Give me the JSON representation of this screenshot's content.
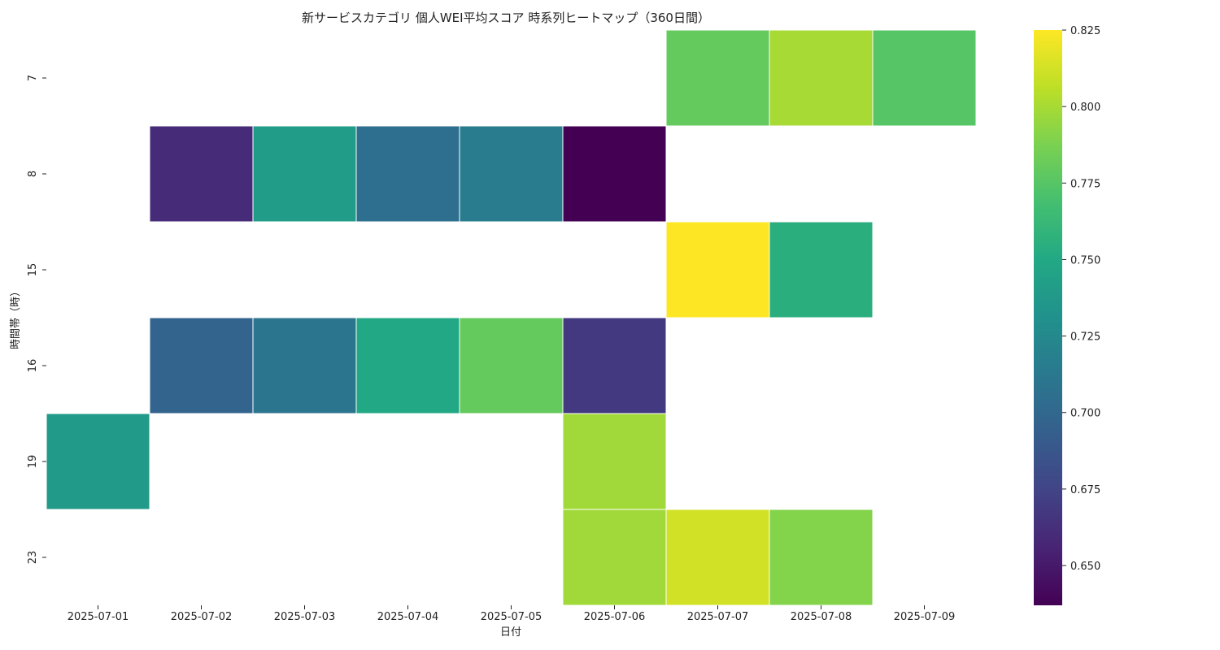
{
  "chart_data": {
    "type": "heatmap",
    "title": "新サービスカテゴリ 個人WEI平均スコア 時系列ヒートマップ（360日間）",
    "xlabel": "日付",
    "ylabel": "時間帯（時）",
    "x_categories": [
      "2025-07-01",
      "2025-07-02",
      "2025-07-03",
      "2025-07-04",
      "2025-07-05",
      "2025-07-06",
      "2025-07-07",
      "2025-07-08",
      "2025-07-09"
    ],
    "y_categories": [
      "7",
      "8",
      "15",
      "16",
      "19",
      "23"
    ],
    "values": [
      [
        null,
        null,
        null,
        null,
        null,
        null,
        0.78,
        0.8,
        0.775
      ],
      [
        null,
        0.66,
        0.74,
        0.705,
        0.715,
        0.637,
        null,
        null,
        null
      ],
      [
        null,
        null,
        null,
        null,
        null,
        null,
        0.825,
        0.755,
        null
      ],
      [
        null,
        0.697,
        0.71,
        0.75,
        0.78,
        0.668,
        null,
        null,
        null
      ],
      [
        0.738,
        null,
        null,
        null,
        null,
        0.798,
        null,
        null,
        null
      ],
      [
        null,
        null,
        null,
        null,
        null,
        0.798,
        0.812,
        0.79,
        null
      ]
    ],
    "colorscale": "viridis",
    "vmin": 0.637,
    "vmax": 0.825,
    "colorbar_ticks": [
      "0.650",
      "0.675",
      "0.700",
      "0.725",
      "0.750",
      "0.775",
      "0.800",
      "0.825"
    ]
  }
}
